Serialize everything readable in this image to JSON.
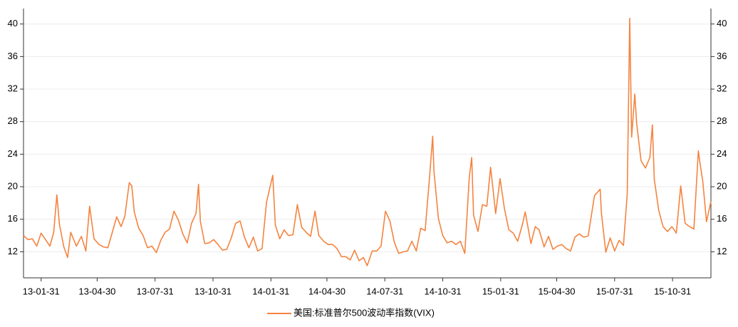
{
  "chart_data": {
    "type": "line",
    "x": [
      "13-01-03",
      "13-01-10",
      "13-01-17",
      "13-01-24",
      "13-01-31",
      "13-02-07",
      "13-02-14",
      "13-02-20",
      "13-02-25",
      "13-03-01",
      "13-03-08",
      "13-03-14",
      "13-03-19",
      "13-03-28",
      "13-04-05",
      "13-04-12",
      "13-04-18",
      "13-04-25",
      "13-05-03",
      "13-05-10",
      "13-05-17",
      "13-05-23",
      "13-05-31",
      "13-06-07",
      "13-06-13",
      "13-06-20",
      "13-06-24",
      "13-06-28",
      "13-07-05",
      "13-07-12",
      "13-07-19",
      "13-07-26",
      "13-08-02",
      "13-08-09",
      "13-08-16",
      "13-08-23",
      "13-08-30",
      "13-09-06",
      "13-09-13",
      "13-09-20",
      "13-09-27",
      "13-10-04",
      "13-10-08",
      "13-10-11",
      "13-10-18",
      "13-10-25",
      "13-11-01",
      "13-11-08",
      "13-11-15",
      "13-11-22",
      "13-11-29",
      "13-12-06",
      "13-12-13",
      "13-12-20",
      "13-12-27",
      "14-01-03",
      "14-01-10",
      "14-01-17",
      "14-01-24",
      "14-02-03",
      "14-02-07",
      "14-02-14",
      "14-02-21",
      "14-02-28",
      "14-03-07",
      "14-03-14",
      "14-03-21",
      "14-03-28",
      "14-04-04",
      "14-04-11",
      "14-04-17",
      "14-04-25",
      "14-05-02",
      "14-05-09",
      "14-05-16",
      "14-05-23",
      "14-05-30",
      "14-06-06",
      "14-06-13",
      "14-06-20",
      "14-06-27",
      "14-07-03",
      "14-07-11",
      "14-07-18",
      "14-07-25",
      "14-08-01",
      "14-08-08",
      "14-08-15",
      "14-08-22",
      "14-08-29",
      "14-09-05",
      "14-09-12",
      "14-09-19",
      "14-09-26",
      "14-10-03",
      "14-10-10",
      "14-10-15",
      "14-10-17",
      "14-10-24",
      "14-10-31",
      "14-11-07",
      "14-11-14",
      "14-11-21",
      "14-11-28",
      "14-12-05",
      "14-12-12",
      "14-12-16",
      "14-12-19",
      "14-12-26",
      "15-01-02",
      "15-01-09",
      "15-01-15",
      "15-01-23",
      "15-01-30",
      "15-02-06",
      "15-02-13",
      "15-02-20",
      "15-02-27",
      "15-03-06",
      "15-03-11",
      "15-03-20",
      "15-03-27",
      "15-04-02",
      "15-04-10",
      "15-04-17",
      "15-04-24",
      "15-05-01",
      "15-05-08",
      "15-05-15",
      "15-05-22",
      "15-05-29",
      "15-06-05",
      "15-06-12",
      "15-06-19",
      "15-06-29",
      "15-07-08",
      "15-07-10",
      "15-07-17",
      "15-07-24",
      "15-07-31",
      "15-08-07",
      "15-08-14",
      "15-08-20",
      "15-08-24",
      "15-08-27",
      "15-09-01",
      "15-09-04",
      "15-09-11",
      "15-09-18",
      "15-09-25",
      "15-09-29",
      "15-10-02",
      "15-10-09",
      "15-10-16",
      "15-10-23",
      "15-10-30",
      "15-11-06",
      "15-11-13",
      "15-11-20",
      "15-11-27",
      "15-12-04",
      "15-12-11",
      "15-12-14",
      "15-12-18",
      "15-12-24",
      "15-12-31"
    ],
    "series": [
      {
        "name": "美国:标准普尔500波动率指数(VIX)",
        "color": "#f5833f",
        "values": [
          14.0,
          13.5,
          13.6,
          12.7,
          14.3,
          13.5,
          12.7,
          14.4,
          19.0,
          15.4,
          12.6,
          11.3,
          14.4,
          12.7,
          13.9,
          12.1,
          17.6,
          13.6,
          12.9,
          12.6,
          12.5,
          14.1,
          16.3,
          15.1,
          16.4,
          20.5,
          20.1,
          16.9,
          14.9,
          14.0,
          12.5,
          12.7,
          11.9,
          13.4,
          14.4,
          14.8,
          17.0,
          15.9,
          14.2,
          13.1,
          15.5,
          16.7,
          20.3,
          15.7,
          13.0,
          13.1,
          13.5,
          12.9,
          12.2,
          12.3,
          13.7,
          15.5,
          15.8,
          13.8,
          12.5,
          13.8,
          12.1,
          12.4,
          18.1,
          21.4,
          15.3,
          13.6,
          14.7,
          14.0,
          14.1,
          17.8,
          15.0,
          14.4,
          13.9,
          17.0,
          14.0,
          13.3,
          12.9,
          12.9,
          12.4,
          11.4,
          11.4,
          11.0,
          12.2,
          10.9,
          11.3,
          10.3,
          12.1,
          12.1,
          12.7,
          17.0,
          15.8,
          13.2,
          11.8,
          12.0,
          12.1,
          13.3,
          12.1,
          14.9,
          14.6,
          21.2,
          26.2,
          21.9,
          16.1,
          14.0,
          13.1,
          13.3,
          12.9,
          13.3,
          11.8,
          21.1,
          23.6,
          16.5,
          14.5,
          17.8,
          17.6,
          22.4,
          16.7,
          21.0,
          17.3,
          14.7,
          14.3,
          13.3,
          15.2,
          16.9,
          13.0,
          15.1,
          14.7,
          12.6,
          13.9,
          12.3,
          12.7,
          12.9,
          12.4,
          12.1,
          13.8,
          14.2,
          13.8,
          13.96,
          18.9,
          19.7,
          16.8,
          11.95,
          13.7,
          12.1,
          13.4,
          12.8,
          19.1,
          40.7,
          26.1,
          31.4,
          27.8,
          23.2,
          22.3,
          23.6,
          27.6,
          20.9,
          17.1,
          15.1,
          14.5,
          15.1,
          14.3,
          20.1,
          15.5,
          15.1,
          14.8,
          24.4,
          22.7,
          20.7,
          15.7,
          18.2
        ]
      }
    ],
    "xlim": [
      "13-01-03",
      "15-12-31"
    ],
    "xticks": [
      "13-01-31",
      "13-04-30",
      "13-07-31",
      "13-10-31",
      "14-01-31",
      "14-04-30",
      "14-07-31",
      "14-10-31",
      "15-01-31",
      "15-04-30",
      "15-07-31",
      "15-10-31"
    ],
    "ylim": [
      8.8,
      41.9
    ],
    "yticks": [
      12,
      16,
      20,
      24,
      28,
      32,
      36,
      40
    ],
    "grid": true,
    "legend": "bottom"
  }
}
